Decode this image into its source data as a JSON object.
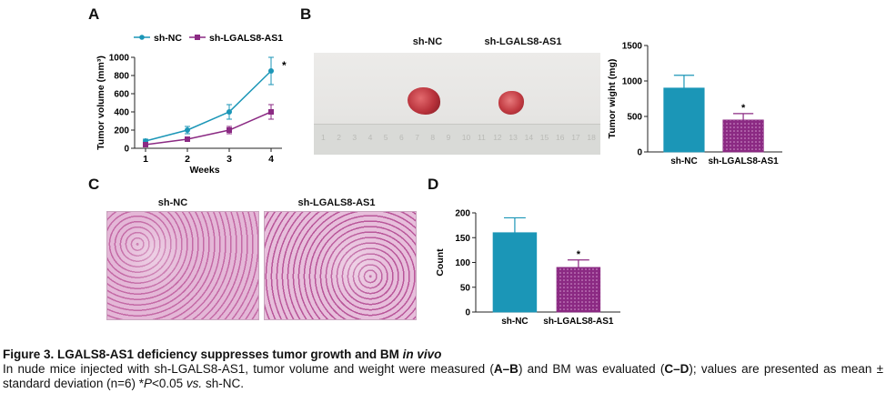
{
  "panels": {
    "a": "A",
    "b": "B",
    "c": "C",
    "d": "D"
  },
  "panel_a": {
    "legend": [
      "sh-NC",
      "sh-LGALS8-AS1"
    ],
    "significance": "*"
  },
  "panel_b": {
    "photo_labels": [
      "sh-NC",
      "sh-LGALS8-AS1"
    ],
    "ruler_numbers": [
      "1",
      "2",
      "3",
      "4",
      "5",
      "6",
      "7",
      "8",
      "9",
      "10",
      "11",
      "12",
      "13",
      "14",
      "15",
      "16",
      "17",
      "18"
    ],
    "significance": "*"
  },
  "panel_c": {
    "labels": [
      "sh-NC",
      "sh-LGALS8-AS1"
    ]
  },
  "panel_d": {
    "significance": "*"
  },
  "colors": {
    "nc": "#1b96b7",
    "lg": "#8b2a83"
  },
  "chart_data": [
    {
      "type": "line",
      "panel": "A",
      "x": [
        1,
        2,
        3,
        4
      ],
      "xticks": [
        "1",
        "2",
        "3",
        "4"
      ],
      "yticks": [
        "0",
        "200",
        "400",
        "600",
        "800",
        "1000"
      ],
      "xlabel": "Weeks",
      "ylabel": "Tumor volume (mm³)",
      "ylim": [
        0,
        1000
      ],
      "series": [
        {
          "name": "sh-NC",
          "values": [
            80,
            200,
            400,
            850
          ],
          "errors": [
            20,
            40,
            80,
            150
          ],
          "color": "#1b96b7"
        },
        {
          "name": "sh-LGALS8-AS1",
          "values": [
            40,
            100,
            200,
            400
          ],
          "errors": [
            10,
            20,
            40,
            80
          ],
          "color": "#8b2a83"
        }
      ]
    },
    {
      "type": "bar",
      "panel": "B",
      "categories": [
        "sh-NC",
        "sh-LGALS8-AS1"
      ],
      "values": [
        900,
        450
      ],
      "errors": [
        180,
        90
      ],
      "yticks": [
        "0",
        "500",
        "1000",
        "1500"
      ],
      "ylabel": "Tumor wight (mg)",
      "ylim": [
        0,
        1500
      ]
    },
    {
      "type": "bar",
      "panel": "D",
      "categories": [
        "sh-NC",
        "sh-LGALS8-AS1"
      ],
      "values": [
        160,
        90
      ],
      "errors": [
        30,
        15
      ],
      "yticks": [
        "0",
        "50",
        "100",
        "150",
        "200"
      ],
      "ylabel": "Count",
      "ylim": [
        0,
        200
      ]
    }
  ],
  "caption": {
    "title": "Figure 3. LGALS8-AS1 deficiency suppresses tumor growth and BM ",
    "title_italic": "in vivo",
    "t1": "In nude mice injected with sh-LGALS8-AS1, tumor volume and weight were measured (",
    "b1": "A–B",
    "t2": ") and BM was evaluated (",
    "b2": "C–D",
    "t3": "); values are presented as mean ± standard deviation (n=6) *",
    "p": "P",
    "t4": "<0.05 ",
    "vs": "vs.",
    "t5": " sh-NC."
  }
}
